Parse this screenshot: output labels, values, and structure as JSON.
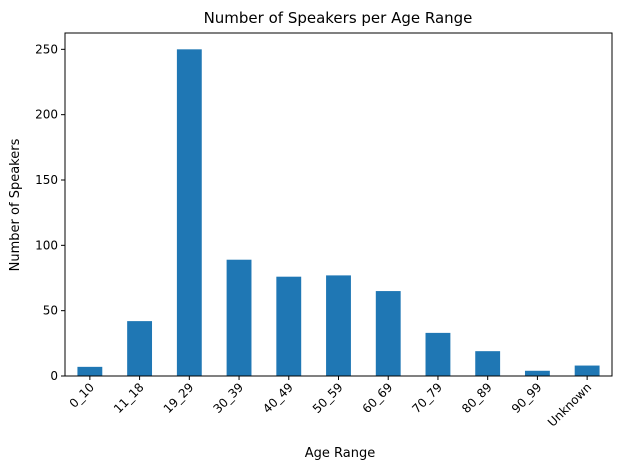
{
  "chart_data": {
    "type": "bar",
    "title": "Number of Speakers per Age Range",
    "xlabel": "Age Range",
    "ylabel": "Number of Speakers",
    "categories": [
      "0_10",
      "11_18",
      "19_29",
      "30_39",
      "40_49",
      "50_59",
      "60_69",
      "70_79",
      "80_89",
      "90_99",
      "Unknown"
    ],
    "values": [
      7,
      42,
      250,
      89,
      76,
      77,
      65,
      33,
      19,
      4,
      8
    ],
    "ylim": [
      0,
      262.5
    ],
    "yticks": [
      0,
      50,
      100,
      150,
      200,
      250
    ],
    "bar_color": "#1f77b4",
    "grid": false,
    "legend": "none"
  }
}
